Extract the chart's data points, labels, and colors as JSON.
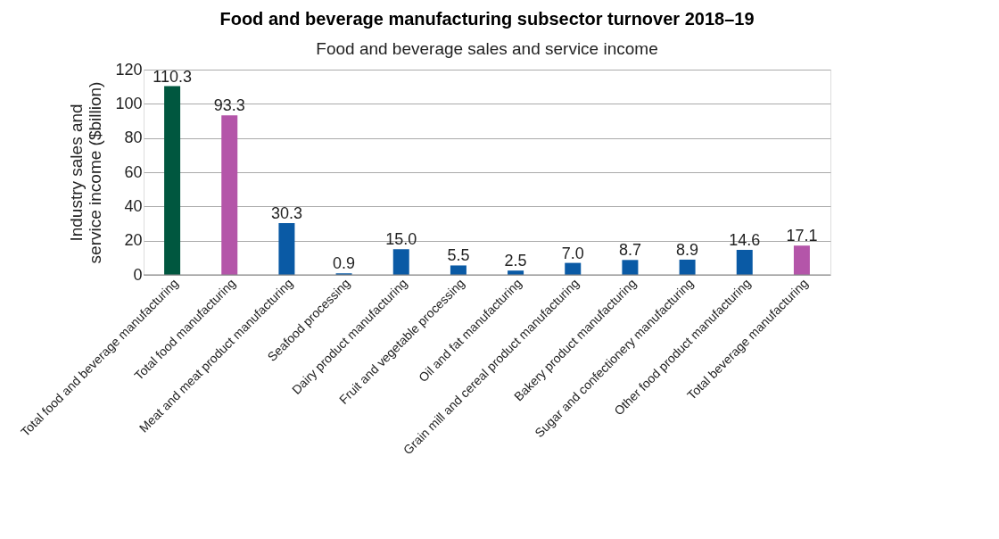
{
  "chart_data": {
    "type": "bar",
    "title": "Food and beverage manufacturing subsector turnover 2018–19",
    "subtitle": "Food and beverage sales and service income",
    "ylabel": "Industry sales and service income ($billion)",
    "categories": [
      "Total food and beverage manufacturing",
      "Total food manufacturing",
      "Meat and meat product manufacturing",
      "Seafood processing",
      "Dairy product manufacturing",
      "Fruit and vegetable processing",
      "Oil and fat manufacturing",
      "Grain mill and cereal product manufacturing",
      "Bakery product manufacturing",
      "Sugar and confectionery manufacturing",
      "Other food product manufacturing",
      "Total beverage manufacturing"
    ],
    "values": [
      110.3,
      93.3,
      30.3,
      0.9,
      15.0,
      5.5,
      2.5,
      7.0,
      8.7,
      8.9,
      14.6,
      17.1
    ],
    "colors": [
      "#00573f",
      "#b455a9",
      "#0a5aa5",
      "#0a5aa5",
      "#0a5aa5",
      "#0a5aa5",
      "#0a5aa5",
      "#0a5aa5",
      "#0a5aa5",
      "#0a5aa5",
      "#0a5aa5",
      "#b455a9"
    ],
    "ylim": [
      0,
      120
    ],
    "yticks": [
      0,
      20,
      40,
      60,
      80,
      100,
      120
    ],
    "value_labels": [
      "110.3",
      "93.3",
      "30.3",
      "0.9",
      "15.0",
      "5.5",
      "2.5",
      "7.0",
      "8.7",
      "8.9",
      "14.6",
      "17.1"
    ],
    "grid": "y",
    "legend": false
  }
}
